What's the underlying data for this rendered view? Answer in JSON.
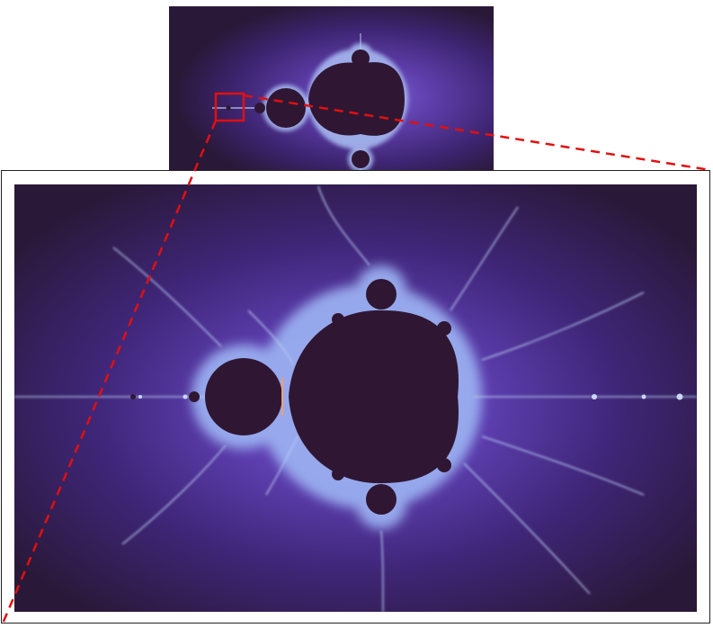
{
  "figure": {
    "overview": {
      "icon": "mandelbrot-set-icon"
    },
    "detail": {
      "icon": "mandelbrot-minibrot-icon"
    },
    "colors": {
      "exterior_dark": "#2a1838",
      "exterior_mid": "#4a2a86",
      "exterior_glow": "#7b5cd6",
      "filament": "#b7c9f2",
      "interior": "#2f1733",
      "edge_warm": "#f0a070",
      "zoom_indicator": "#e01010",
      "frame": "#222222"
    }
  }
}
